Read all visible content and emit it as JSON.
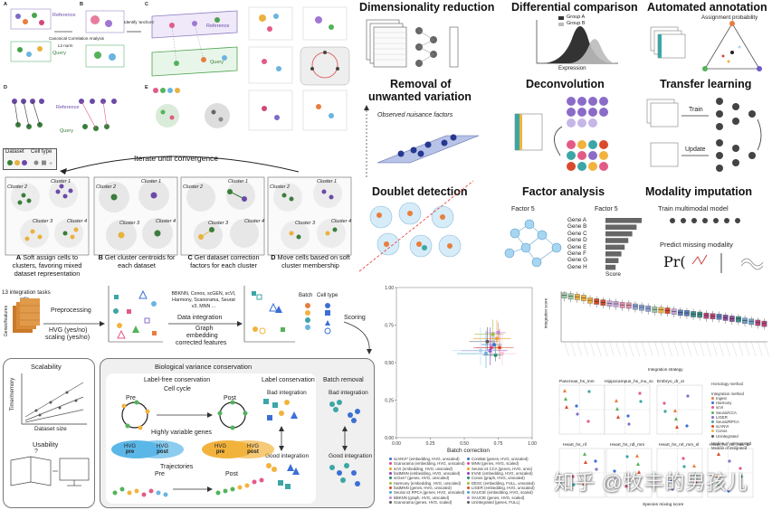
{
  "seurat_panel": {
    "reference": "Reference",
    "query": "Query",
    "cca_label": "Canonical Correlation Analysis",
    "l2_label": "L2 norm",
    "identify_anchors": "Identify 'anchors'",
    "label_a": "A",
    "label_b": "B",
    "label_c": "C",
    "label_d": "D",
    "label_e": "E"
  },
  "harmony": {
    "legend_dataset": "Dataset",
    "legend_celltype": "Cell type",
    "iterate": "Iterate until convergence",
    "cluster1": "Cluster 1",
    "cluster2": "Cluster 2",
    "cluster3": "Cluster 3",
    "cluster4": "Cluster 4",
    "cap_a_bold": "A",
    "cap_a": "Soft assign cells to clusters, favoring mixed dataset representation",
    "cap_b_bold": "B",
    "cap_b": "Get cluster centroids for each dataset",
    "cap_c_bold": "C",
    "cap_c": "Get dataset correction factors for each cluster",
    "cap_d_bold": "D",
    "cap_d": "Move cells based on soft cluster membership"
  },
  "tasks": {
    "dim_red": "Dimensionality reduction",
    "diff_comp": "Differential comparison",
    "auto_annot": "Automated annotation",
    "removal1": "Removal of",
    "removal2": "unwanted variation",
    "deconv": "Deconvolution",
    "transfer": "Transfer learning",
    "doublet": "Doublet detection",
    "factor": "Factor analysis",
    "modality": "Modality imputation",
    "group_a": "Group A",
    "group_b": "Group B",
    "expression": "Expression",
    "assign_prob": "Assignment probability",
    "nuisance": "Observed nuisance factors",
    "train": "Train",
    "update": "Update",
    "factor5a": "Factor 5",
    "factor5b": "Factor 5",
    "genes": [
      "Gene A",
      "Gene B",
      "Gene C",
      "Gene D",
      "Gene E",
      "Gene F",
      "Gene G",
      "Gene H"
    ],
    "gene_scores": [
      1.0,
      0.86,
      0.74,
      0.63,
      0.53,
      0.44,
      0.36,
      0.28
    ],
    "score": "Score",
    "train_mm": "Train multimodal model",
    "predict_mm": "Predict missing modality",
    "pr": "Pr("
  },
  "pipeline": {
    "tasks_label": "13 integration tasks",
    "cells": "cells",
    "genes_features": "Genes/features",
    "preprocessing": "Preprocessing",
    "hvg": "HVG (yes/no)",
    "scaling": "scaling (yes/no)",
    "methods": "BBKNN, Conos, scGEN, scVI, Harmony, Scanorama, Seurat v3, MNN ...",
    "data_integration": "Data integration",
    "graph": "Graph",
    "embedding": "embedding",
    "corrected": "corrected features",
    "batch": "Batch",
    "celltype": "Cell type",
    "scoring": "Scoring"
  },
  "metrics": {
    "scalability": "Scalability",
    "time_memory": "Time/memory",
    "dataset_size": "Dataset size",
    "usability": "Usability",
    "bio_var": "Biological variance conservation",
    "label_free": "Label-free conservation",
    "cell_cycle": "Cell cycle",
    "pre": "Pre",
    "post": "Post",
    "hvg_genes": "Highly variable genes",
    "hvg": "HVG",
    "pre_small": "pre",
    "post_small": "post",
    "trajectories": "Trajectories",
    "pre2": "Pre",
    "post2": "Post",
    "label_cons": "Label conservation",
    "bad_int": "Bad integration",
    "good_int": "Good integration",
    "batch_removal": "Batch removal",
    "bad_int2": "Bad integration",
    "good_int2": "Good integration"
  },
  "scatter": {
    "xlabel": "Batch correction",
    "yticks": [
      "1.00",
      "0.75",
      "0.50",
      "0.25",
      "0.00"
    ],
    "xticks": [
      "0.00",
      "0.25",
      "0.50",
      "0.75",
      "1.00"
    ],
    "legend_left": [
      "scANVI* (embedding, HVG, unscaled)",
      "Scanorama (embedding, HVG, unscaled)",
      "scVI (embedding, HVG, unscaled)",
      "fastMNN (embedding, HVG, unscaled)",
      "scGen* (genes, HVG, unscaled)",
      "Harmony (embedding, HVG, unscaled)",
      "fastMNN (genes, HVG, unscaled)",
      "Seurat v3 RPCA (genes, HVG, unscaled)",
      "BBKNN (graph, HVG, unscaled)",
      "Scanorama (genes, HVG, scaled)"
    ],
    "legend_right": [
      "ComBat (genes, HVG, unscaled)",
      "MNN (genes, HVG, scaled)",
      "Seurat v3 CCA (genes, HVG, unsc)",
      "trVAE (embedding, HVG, unscaled)",
      "Conos (graph, HVG, unscaled)",
      "DESC (embedding, FULL, unscaled)",
      "LIGER (embedding, HVG, unscaled)",
      "SAUCIE (embedding, HVG, scaled)",
      "SAUCIE (genes, HVG, scaled)",
      "Unintegrated (genes, FULL)"
    ]
  },
  "chart_data": {
    "type": "scatter",
    "xlabel": "Batch correction",
    "ylabel": "",
    "xlim": [
      0,
      1
    ],
    "ylim": [
      0,
      1
    ],
    "points": [
      {
        "x": 0.72,
        "y": 0.62,
        "color": "#3b6fd6"
      },
      {
        "x": 0.7,
        "y": 0.6,
        "color": "#e1458f"
      },
      {
        "x": 0.74,
        "y": 0.66,
        "color": "#f0a020"
      },
      {
        "x": 0.69,
        "y": 0.58,
        "color": "#8c3fc4"
      },
      {
        "x": 0.73,
        "y": 0.55,
        "color": "#1f8a70"
      },
      {
        "x": 0.71,
        "y": 0.69,
        "color": "#9bbf3c"
      },
      {
        "x": 0.76,
        "y": 0.6,
        "color": "#d94b2b"
      },
      {
        "x": 0.66,
        "y": 0.56,
        "color": "#49a5d8"
      },
      {
        "x": 0.75,
        "y": 0.7,
        "color": "#c785d8"
      },
      {
        "x": 0.67,
        "y": 0.64,
        "color": "#5a5a5a"
      },
      {
        "x": 0.78,
        "y": 0.56,
        "color": "#f5c3d6"
      },
      {
        "x": 0.62,
        "y": 0.58,
        "color": "#a7d6f2"
      }
    ]
  },
  "boxplot": {
    "ylabel": "Integration score",
    "xlabel": "Integration strategy",
    "values": [
      0.92,
      0.9,
      0.89,
      0.87,
      0.82,
      0.8,
      0.78,
      0.76,
      0.75,
      0.73,
      0.72,
      0.7,
      0.68,
      0.66,
      0.64,
      0.63,
      0.62,
      0.6,
      0.58,
      0.57,
      0.55,
      0.54,
      0.52,
      0.51,
      0.5,
      0.48,
      0.46,
      0.45,
      0.42,
      0.4,
      0.38,
      0.36
    ],
    "colors": [
      "#9bc7a4",
      "#9bc7a4",
      "#f2b33d",
      "#f2b33d",
      "#f2b33d",
      "#d94b2b",
      "#d94b2b",
      "#c9a6d8",
      "#c9a6d8",
      "#e68fb0",
      "#e68fb0",
      "#8aa3d6",
      "#8aa3d6",
      "#8aa3d6",
      "#9bc7a4",
      "#f2b33d",
      "#d94b2b",
      "#c9a6d8",
      "#5a7fbf",
      "#5a7fbf",
      "#3c8d8a",
      "#3c8d8a",
      "#b6467a",
      "#b6467a",
      "#5a7fbf",
      "#8b4f9e",
      "#8b4f9e",
      "#3c8d8a",
      "#6da1c9",
      "#6da1c9",
      "#b6467a",
      "#b6467a"
    ]
  },
  "small_multiples": {
    "titles": [
      "Pancreas_hs_mm",
      "Hippocampus_hs_mu_sc",
      "Embryo_dr_xt",
      "Heart_hs_nf",
      "Heart_hs_rdl_mm",
      "Heart_hs_nrl_mm_sl",
      "Heart_hs_nrl_mm_dl"
    ],
    "xlabel": "Species mixing score",
    "legend_title": "Integration method",
    "legend": [
      "Ingest",
      "Harmony",
      "scVI",
      "Seurat/CCA",
      "LIGER",
      "Seurat/RPCA",
      "scANVI",
      "Conos",
      "Unintegrated"
    ],
    "homology": "Homology method",
    "median_note": "Median of unintegrated",
    "median_note2": "Median of integrated"
  },
  "watermark": "知乎 @牧丰的男孩儿"
}
